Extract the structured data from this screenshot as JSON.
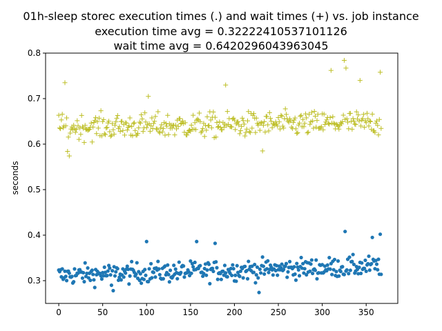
{
  "chart_data": {
    "type": "scatter",
    "title_lines": [
      "01h-sleep storec execution times (.) and wait times (+) vs. job instance",
      "execution time avg = 0.32222410537101126",
      "wait time avg = 0.6420296043963045"
    ],
    "xlabel": "",
    "ylabel": "seconds",
    "xlim": [
      -15,
      386
    ],
    "ylim": [
      0.25,
      0.8
    ],
    "x_ticks": [
      0,
      50,
      100,
      150,
      200,
      250,
      300,
      350
    ],
    "y_ticks": [
      0.3,
      0.4,
      0.5,
      0.6,
      0.7,
      0.8
    ],
    "y_tick_labels": [
      "0.3",
      "0.4",
      "0.5",
      "0.6",
      "0.7",
      "0.8"
    ],
    "grid": false,
    "legend": "none",
    "n_points": 368,
    "series": [
      {
        "marker": "dot",
        "color": "#1f77b4",
        "mean": 0.322,
        "typical_range": [
          0.28,
          0.38
        ],
        "highlights": [
          [
            5,
            0.303
          ],
          [
            60,
            0.29
          ],
          [
            62,
            0.278
          ],
          [
            100,
            0.386
          ],
          [
            157,
            0.386
          ],
          [
            178,
            0.382
          ],
          [
            228,
            0.274
          ],
          [
            326,
            0.408
          ],
          [
            357,
            0.395
          ],
          [
            366,
            0.402
          ]
        ]
      },
      {
        "marker": "plus",
        "color": "#bcbd22",
        "mean": 0.642,
        "typical_range": [
          0.59,
          0.69
        ],
        "highlights": [
          [
            7,
            0.735
          ],
          [
            10,
            0.584
          ],
          [
            12,
            0.574
          ],
          [
            102,
            0.705
          ],
          [
            190,
            0.73
          ],
          [
            310,
            0.762
          ],
          [
            325,
            0.784
          ],
          [
            327,
            0.767
          ],
          [
            343,
            0.74
          ],
          [
            366,
            0.758
          ],
          [
            368,
            0.737
          ],
          [
            232,
            0.585
          ]
        ]
      }
    ]
  }
}
